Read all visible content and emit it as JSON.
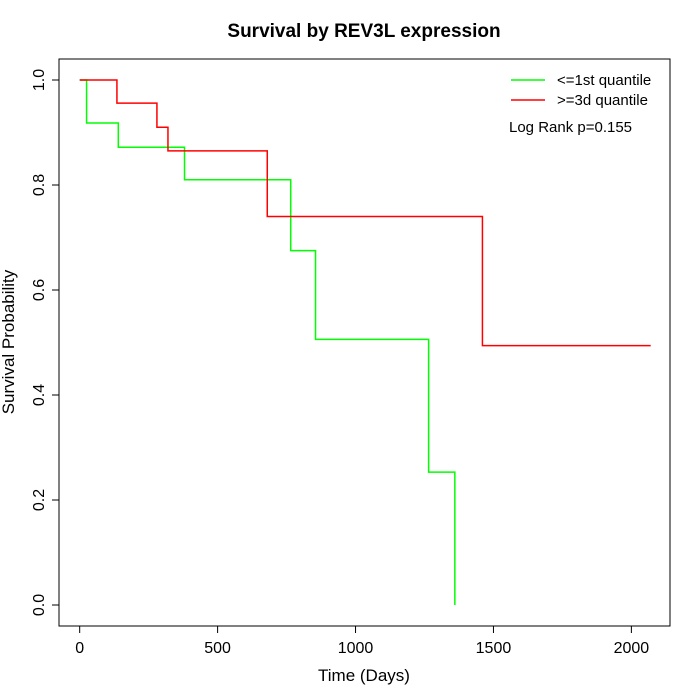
{
  "chart_data": {
    "type": "line",
    "title": "Survival by REV3L expression",
    "xlabel": "Time (Days)",
    "ylabel": "Survival Probability",
    "xlim": [
      -75,
      2140
    ],
    "ylim": [
      -0.04,
      1.04
    ],
    "x_ticks": [
      0,
      500,
      1000,
      1500,
      2000
    ],
    "y_ticks": [
      0.0,
      0.2,
      0.4,
      0.6,
      0.8,
      1.0
    ],
    "x_tick_labels": [
      "0",
      "500",
      "1000",
      "1500",
      "2000"
    ],
    "y_tick_labels": [
      "0.0",
      "0.2",
      "0.4",
      "0.6",
      "0.8",
      "1.0"
    ],
    "legend_position": "top-right",
    "annotation": "Log Rank p=0.155",
    "series": [
      {
        "name": "<=1st quantile",
        "color": "#00ff00",
        "x": [
          0,
          25,
          140,
          380,
          765,
          855,
          1265,
          1360
        ],
        "y": [
          1.0,
          0.918,
          0.872,
          0.81,
          0.675,
          0.506,
          0.253,
          0.0
        ]
      },
      {
        "name": ">=3d quantile",
        "color": "#ff0000",
        "x": [
          0,
          135,
          280,
          320,
          680,
          1460,
          2070
        ],
        "y": [
          1.0,
          0.956,
          0.91,
          0.865,
          0.74,
          0.494,
          0.494
        ]
      }
    ]
  }
}
